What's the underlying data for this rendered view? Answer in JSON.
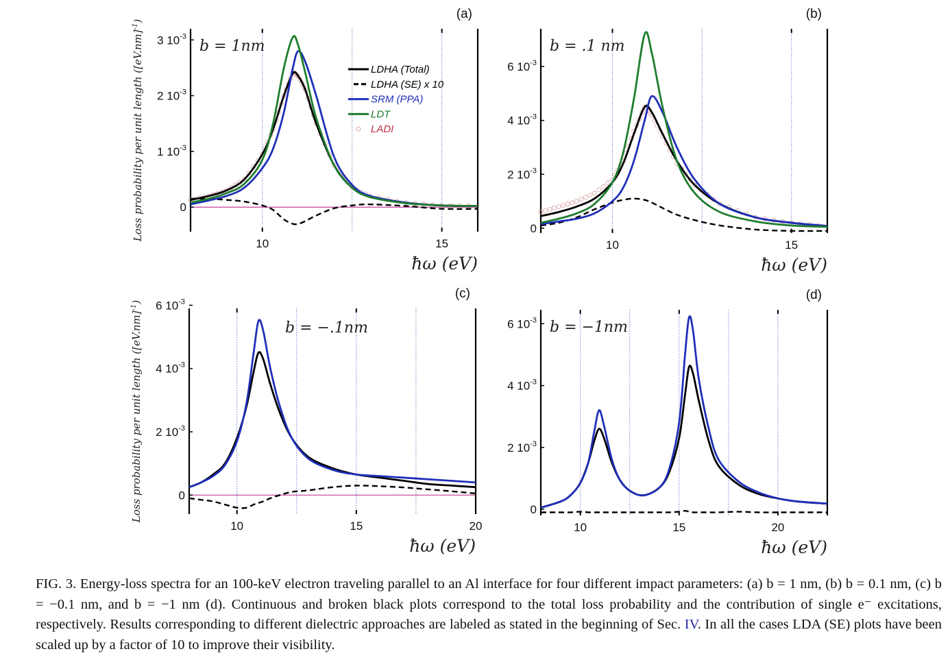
{
  "chart_data": [
    {
      "panel": "(a)",
      "type": "line",
      "annotation": "b = 1nm",
      "xlabel": "ħω (eV)",
      "ylabel": "Loss probability per unit length ([eV.nm]",
      "ylabel_exp": "-1",
      "ylabel_close": ")",
      "xlim": [
        8,
        16
      ],
      "ylim": [
        -0.00044,
        0.0032
      ],
      "xticks": [
        {
          "value": 10,
          "label": "10"
        },
        {
          "value": 15,
          "label": "15"
        }
      ],
      "yticks": [
        {
          "value": 0,
          "label": "0",
          "exp": ""
        },
        {
          "value": 0.001,
          "label": "1 10",
          "exp": "-3"
        },
        {
          "value": 0.002,
          "label": "2 10",
          "exp": "-3"
        },
        {
          "value": 0.003,
          "label": "3 10",
          "exp": "-3"
        }
      ],
      "grid_x": [
        10,
        12.5,
        15
      ],
      "zero_line": true,
      "legend": {
        "placement": "top-right",
        "entries": [
          "LDHA (Total)",
          "LDHA (SE) x 10",
          "SRM (PPA)",
          "LDT",
          "LADI"
        ]
      },
      "x": [
        8,
        8.5,
        9,
        9.5,
        10,
        10.3,
        10.6,
        10.85,
        11,
        11.2,
        11.5,
        12,
        12.5,
        13,
        14,
        15,
        16
      ],
      "series": [
        {
          "name": "LADI",
          "style": "circles",
          "color": "#d9a0a0",
          "values": [
            0.00013,
            0.0002,
            0.0003,
            0.0005,
            0.00095,
            0.0014,
            0.002,
            0.00242,
            0.00235,
            0.0021,
            0.0015,
            0.00075,
            0.00035,
            0.0002,
            8e-05,
            3e-05,
            2e-05
          ]
        },
        {
          "name": "LDHA (Total)",
          "style": "solid",
          "color": "#000000",
          "values": [
            0.00013,
            0.0002,
            0.0003,
            0.0005,
            0.00095,
            0.0014,
            0.002,
            0.0024,
            0.00235,
            0.0021,
            0.0015,
            0.00075,
            0.00035,
            0.0002,
            8e-05,
            3e-05,
            2e-05
          ]
        },
        {
          "name": "LDHA (SE) x 10",
          "style": "dashed",
          "color": "#000000",
          "values": [
            0.00015,
            0.00015,
            0.00013,
            0.0001,
            3e-05,
            -5e-05,
            -0.00022,
            -0.0003,
            -0.0003,
            -0.00025,
            -0.00015,
            -2e-05,
            3e-05,
            5e-05,
            2e-05,
            -3e-05,
            -3e-05
          ]
        },
        {
          "name": "SRM (PPA)",
          "style": "solid",
          "color": "#1f2fb8",
          "values": [
            5e-05,
            0.00012,
            0.0002,
            0.00035,
            0.0007,
            0.00105,
            0.0017,
            0.0025,
            0.0028,
            0.0026,
            0.002,
            0.0009,
            0.0004,
            0.0002,
            8e-05,
            3e-05,
            2e-05
          ]
        },
        {
          "name": "LDT",
          "style": "solid",
          "color": "#1e7d2e",
          "values": [
            8e-05,
            0.00015,
            0.00025,
            0.00042,
            0.00085,
            0.0015,
            0.0025,
            0.00305,
            0.0029,
            0.0024,
            0.0016,
            0.00075,
            0.00035,
            0.00018,
            7e-05,
            3e-05,
            2e-05
          ]
        }
      ]
    },
    {
      "panel": "(b)",
      "type": "line",
      "annotation": "b = .1 nm",
      "xlabel": "ħω (eV)",
      "xlim": [
        8,
        16
      ],
      "ylim": [
        -0.00018,
        0.0074
      ],
      "xticks": [
        {
          "value": 10,
          "label": "10"
        },
        {
          "value": 15,
          "label": "15"
        }
      ],
      "yticks": [
        {
          "value": 0,
          "label": "0",
          "exp": ""
        },
        {
          "value": 0.002,
          "label": "2 10",
          "exp": "-3"
        },
        {
          "value": 0.004,
          "label": "4 10",
          "exp": "-3"
        },
        {
          "value": 0.006,
          "label": "6 10",
          "exp": "-3"
        }
      ],
      "grid_x": [
        10,
        12.5,
        15
      ],
      "zero_line": false,
      "x": [
        8,
        8.5,
        9,
        9.5,
        10,
        10.3,
        10.6,
        10.9,
        11.1,
        11.4,
        11.8,
        12.3,
        13,
        14,
        15,
        16
      ],
      "series": [
        {
          "name": "LADI",
          "style": "circles",
          "color": "#d9a0a0",
          "values": [
            0.0006,
            0.0008,
            0.001,
            0.0013,
            0.0018,
            0.0025,
            0.0036,
            0.0045,
            0.0042,
            0.0034,
            0.0024,
            0.0016,
            0.0009,
            0.0004,
            0.0002,
            8e-05
          ]
        },
        {
          "name": "LDHA (Total)",
          "style": "solid",
          "color": "#000000",
          "values": [
            0.00045,
            0.0006,
            0.0008,
            0.0011,
            0.0017,
            0.0024,
            0.0035,
            0.0045,
            0.0043,
            0.0035,
            0.0025,
            0.0016,
            0.0009,
            0.0004,
            0.0002,
            8e-05
          ]
        },
        {
          "name": "LDHA (SE) x 10",
          "style": "dashed",
          "color": "#000000",
          "values": [
            0.0001,
            0.0002,
            0.0004,
            0.0007,
            0.00095,
            0.00105,
            0.0011,
            0.00105,
            0.00095,
            0.00075,
            0.0005,
            0.0003,
            0.0001,
            -5e-05,
            -0.0001,
            -0.0001
          ]
        },
        {
          "name": "SRM (PPA)",
          "style": "solid",
          "color": "#1f2fb8",
          "values": [
            0.00015,
            0.00025,
            0.00035,
            0.00055,
            0.001,
            0.0015,
            0.0025,
            0.004,
            0.0049,
            0.0043,
            0.003,
            0.0018,
            0.0009,
            0.0004,
            0.0002,
            8e-05
          ]
        },
        {
          "name": "LDT",
          "style": "solid",
          "color": "#1e7d2e",
          "values": [
            0.0002,
            0.00035,
            0.00055,
            0.0009,
            0.0017,
            0.0028,
            0.0048,
            0.0072,
            0.0065,
            0.0045,
            0.0025,
            0.0013,
            0.0006,
            0.00025,
            0.0001,
            5e-05
          ]
        }
      ]
    },
    {
      "panel": "(c)",
      "type": "line",
      "annotation": "b = −.1nm",
      "xlabel": "ħω (eV)",
      "ylabel": "Loss probability per unit length ([eV.nm]",
      "ylabel_exp": "-1",
      "ylabel_close": ")",
      "xlim": [
        8,
        20
      ],
      "ylim": [
        -0.0006,
        0.0059
      ],
      "xticks": [
        {
          "value": 10,
          "label": "10"
        },
        {
          "value": 15,
          "label": "15"
        },
        {
          "value": 20,
          "label": "20"
        }
      ],
      "yticks": [
        {
          "value": 0,
          "label": "0",
          "exp": ""
        },
        {
          "value": 0.002,
          "label": "2 10",
          "exp": "-3"
        },
        {
          "value": 0.004,
          "label": "4 10",
          "exp": "-3"
        },
        {
          "value": 0.006,
          "label": "6 10",
          "exp": "-3"
        }
      ],
      "grid_x": [
        10,
        12.5,
        15,
        17.5
      ],
      "zero_line": true,
      "x": [
        8,
        8.5,
        9,
        9.5,
        10,
        10.4,
        10.7,
        10.9,
        11.1,
        11.4,
        11.8,
        12.3,
        13,
        14,
        15,
        16,
        17,
        18,
        19,
        20
      ],
      "series": [
        {
          "name": "LDHA (Total)",
          "style": "solid",
          "color": "#000000",
          "values": [
            0.00025,
            0.0004,
            0.00065,
            0.001,
            0.0018,
            0.0028,
            0.0039,
            0.0045,
            0.0043,
            0.0035,
            0.0026,
            0.0018,
            0.0012,
            0.00085,
            0.00065,
            0.00055,
            0.00045,
            0.00035,
            0.0003,
            0.00025
          ]
        },
        {
          "name": "LDHA (SE) x 10",
          "style": "dashed",
          "color": "#000000",
          "values": [
            -0.0001,
            -0.00015,
            -0.0002,
            -0.0003,
            -0.0004,
            -0.0004,
            -0.0003,
            -0.00025,
            -0.0002,
            -0.0001,
            0,
            0.0001,
            0.00015,
            0.00025,
            0.0003,
            0.00028,
            0.00024,
            0.00018,
            0.00012,
            5e-05
          ]
        },
        {
          "name": "SRM (PPA)",
          "style": "solid",
          "color": "#1f2fb8",
          "values": [
            0.00025,
            0.0004,
            0.0006,
            0.00095,
            0.0017,
            0.0029,
            0.0045,
            0.0055,
            0.0052,
            0.004,
            0.0028,
            0.0018,
            0.00115,
            0.0008,
            0.00065,
            0.0006,
            0.00055,
            0.0005,
            0.00045,
            0.0004
          ]
        }
      ]
    },
    {
      "panel": "(d)",
      "type": "line",
      "annotation": "b = −1nm",
      "xlabel": "ħω (eV)",
      "xlim": [
        8,
        22.5
      ],
      "ylim": [
        -0.0002,
        0.00645
      ],
      "xticks": [
        {
          "value": 10,
          "label": "10"
        },
        {
          "value": 15,
          "label": "15"
        },
        {
          "value": 20,
          "label": "20"
        }
      ],
      "yticks": [
        {
          "value": 0,
          "label": "0",
          "exp": ""
        },
        {
          "value": 0.002,
          "label": "2 10",
          "exp": "-3"
        },
        {
          "value": 0.004,
          "label": "4 10",
          "exp": "-3"
        },
        {
          "value": 0.006,
          "label": "6 10",
          "exp": "-3"
        }
      ],
      "grid_x": [
        10,
        12.5,
        15,
        17.5,
        20
      ],
      "zero_line": false,
      "x": [
        8,
        9,
        9.5,
        10,
        10.4,
        10.7,
        10.95,
        11.2,
        11.6,
        12,
        12.5,
        13.2,
        14,
        14.5,
        15,
        15.3,
        15.5,
        15.7,
        16,
        16.5,
        17,
        18,
        19,
        20,
        21,
        22.5
      ],
      "series": [
        {
          "name": "LDHA (Total)",
          "style": "solid",
          "color": "#000000",
          "values": [
            5e-05,
            0.00025,
            0.00045,
            0.00085,
            0.0015,
            0.0022,
            0.0026,
            0.0023,
            0.0015,
            0.00095,
            0.0006,
            0.00045,
            0.0007,
            0.0012,
            0.0023,
            0.0037,
            0.0046,
            0.0044,
            0.0035,
            0.0022,
            0.0014,
            0.0008,
            0.0005,
            0.00035,
            0.00025,
            0.00018
          ]
        },
        {
          "name": "LDHA (SE) x 10",
          "style": "dashed",
          "color": "#000000",
          "values": [
            -0.0001,
            -0.0001,
            -0.0001,
            -8e-05,
            -0.0001,
            -0.0001,
            -0.0001,
            -0.0001,
            -0.0001,
            -0.0001,
            -0.0001,
            -0.0001,
            -0.0001,
            -0.0001,
            -8e-05,
            -5e-05,
            -8e-05,
            -0.0001,
            -0.0001,
            -0.0001,
            -0.0001,
            -8e-05,
            -0.0001,
            -0.0001,
            -0.0001,
            -0.0001
          ]
        },
        {
          "name": "SRM (PPA)",
          "style": "solid",
          "color": "#1f2fb8",
          "values": [
            5e-05,
            0.00025,
            0.00045,
            0.00085,
            0.0015,
            0.0025,
            0.0032,
            0.0027,
            0.0016,
            0.00095,
            0.0006,
            0.00045,
            0.0007,
            0.0013,
            0.0028,
            0.005,
            0.0062,
            0.0058,
            0.0042,
            0.0026,
            0.0016,
            0.0009,
            0.00055,
            0.00035,
            0.00025,
            0.00018
          ]
        }
      ]
    }
  ],
  "caption": {
    "fig": "FIG. 3.",
    "part1": "Energy-loss spectra for an 100-keV electron traveling parallel to an Al interface for four different impact parameters: (a) b = 1 nm, (b) b = 0.1 nm, (c) b = −0.1 nm, and b = −1 nm (d). Continuous and broken black plots correspond to the total loss probability and the contribution of single e⁻ excitations, respectively. Results corresponding to different dielectric approaches are labeled as stated in the beginning of Sec.",
    "ref": "IV",
    "part2": ". In all the cases LDA (SE) plots have been scaled up by a factor of 10 to improve their visibility."
  }
}
